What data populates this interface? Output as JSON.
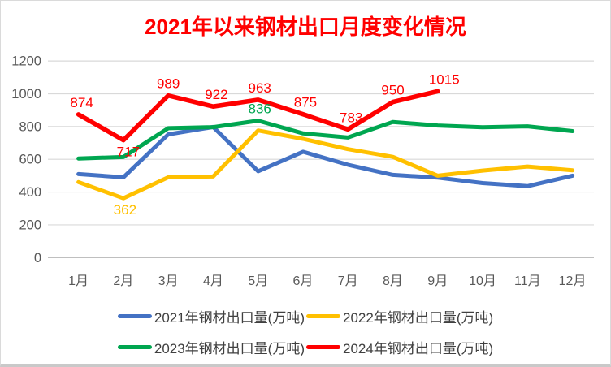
{
  "title": "2021年以来钢材出口月度变化情况",
  "colors": {
    "title": "#ff0000",
    "axis_text": "#595959",
    "gridline": "#d9d9d9",
    "axis_line": "#bfbfbf",
    "legend_text": "#404040",
    "background": "#ffffff"
  },
  "chart_data": {
    "type": "line",
    "title": "2021年以来钢材出口月度变化情况",
    "categories": [
      "1月",
      "2月",
      "3月",
      "4月",
      "5月",
      "6月",
      "7月",
      "8月",
      "9月",
      "10月",
      "11月",
      "12月"
    ],
    "y_ticks": [
      0,
      200,
      400,
      600,
      800,
      1000,
      1200
    ],
    "ylim": [
      0,
      1200
    ],
    "grid": "horizontal",
    "legend_position": "bottom",
    "series": [
      {
        "name": "2021年钢材出口量(万吨)",
        "color": "#4472c4",
        "values": [
          510,
          490,
          752,
          797,
          527,
          646,
          567,
          505,
          488,
          455,
          436,
          500
        ],
        "data_labels": []
      },
      {
        "name": "2022年钢材出口量(万吨)",
        "color": "#ffc000",
        "values": [
          461,
          362,
          490,
          495,
          776,
          725,
          662,
          615,
          500,
          531,
          556,
          533
        ],
        "data_labels": [
          {
            "i": 1,
            "text": "362",
            "pos": "below",
            "dx": 2
          }
        ]
      },
      {
        "name": "2023年钢材出口量(万吨)",
        "color": "#00a650",
        "values": [
          605,
          614,
          790,
          796,
          836,
          758,
          733,
          828,
          806,
          795,
          801,
          772
        ],
        "data_labels": [
          {
            "i": 4,
            "text": "836",
            "pos": "above",
            "dx": 2
          }
        ]
      },
      {
        "name": "2024年钢材出口量(万吨)",
        "color": "#ff0000",
        "values": [
          874,
          717,
          989,
          922,
          963,
          875,
          783,
          950,
          1015
        ],
        "data_labels": [
          {
            "i": 0,
            "text": "874",
            "pos": "above",
            "dx": 4
          },
          {
            "i": 1,
            "text": "717",
            "pos": "below",
            "dx": 6
          },
          {
            "i": 2,
            "text": "989",
            "pos": "above",
            "dx": 0
          },
          {
            "i": 3,
            "text": "922",
            "pos": "above",
            "dx": 4
          },
          {
            "i": 4,
            "text": "963",
            "pos": "above",
            "dx": 2
          },
          {
            "i": 5,
            "text": "875",
            "pos": "above",
            "dx": 3
          },
          {
            "i": 6,
            "text": "783",
            "pos": "above",
            "dx": 4
          },
          {
            "i": 7,
            "text": "950",
            "pos": "above",
            "dx": 0
          },
          {
            "i": 8,
            "text": "1015",
            "pos": "above",
            "dx": 8
          }
        ]
      }
    ]
  }
}
